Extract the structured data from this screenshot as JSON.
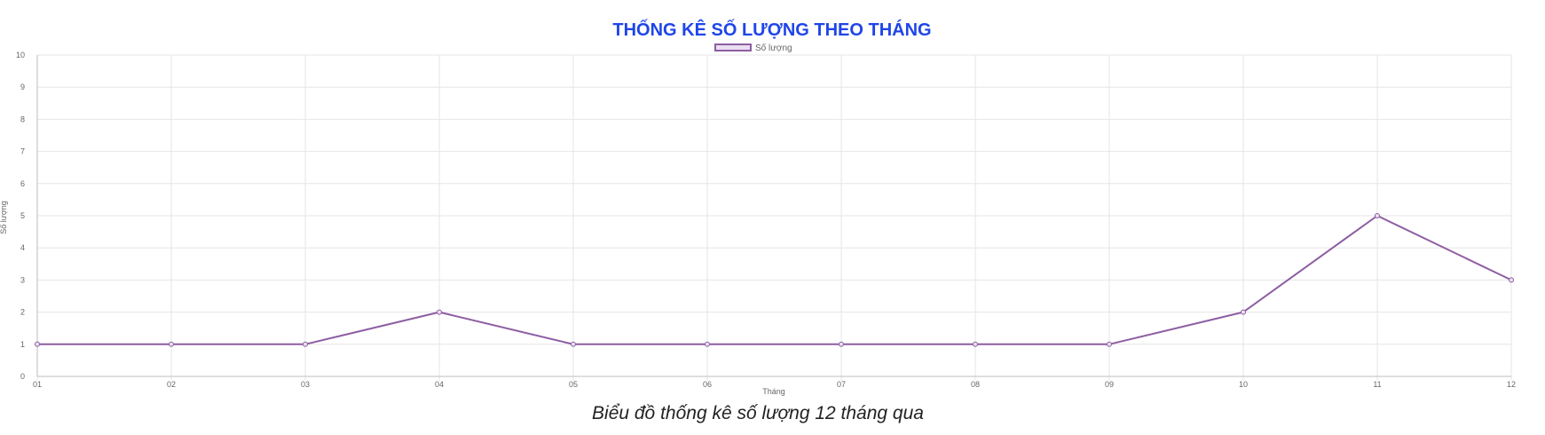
{
  "chart_data": {
    "type": "line",
    "title": "THỐNG KÊ SỐ LƯỢNG THEO THÁNG",
    "xlabel": "Tháng",
    "ylabel": "Số lượng",
    "categories": [
      "01",
      "02",
      "03",
      "04",
      "05",
      "06",
      "07",
      "08",
      "09",
      "10",
      "11",
      "12"
    ],
    "series": [
      {
        "name": "Số lượng",
        "values": [
          1,
          1,
          1,
          2,
          1,
          1,
          1,
          1,
          1,
          2,
          5,
          3
        ]
      }
    ],
    "ylim": [
      0,
      10
    ],
    "yticks": [
      "0",
      "1",
      "2",
      "3",
      "4",
      "5",
      "6",
      "7",
      "8",
      "9",
      "10"
    ],
    "grid": true,
    "legend_position": "top-center",
    "colors": {
      "line": "#8e5ea2",
      "legend_fill": "#eadff0",
      "title": "#1f45e8",
      "grid": "#e6e6e6"
    },
    "caption": "Biểu đồ thống kê số lượng 12 tháng qua"
  }
}
